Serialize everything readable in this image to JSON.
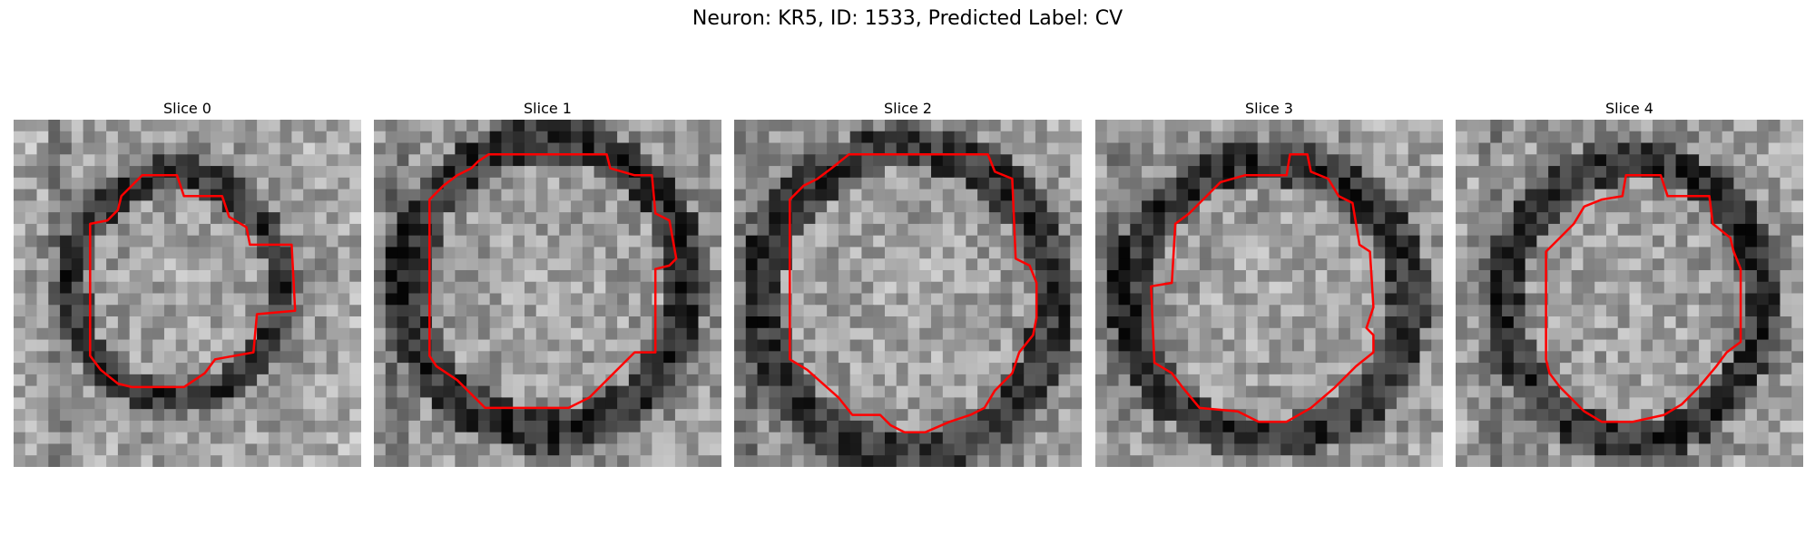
{
  "figure": {
    "title": "Neuron: KR5, ID: 1533, Predicted Label: CV"
  },
  "panels": [
    {
      "title": "Slice 0"
    },
    {
      "title": "Slice 1"
    },
    {
      "title": "Slice 2"
    },
    {
      "title": "Slice 3"
    },
    {
      "title": "Slice 4"
    }
  ],
  "colors": {
    "contour": "#ff0000",
    "background": "#ffffff"
  }
}
